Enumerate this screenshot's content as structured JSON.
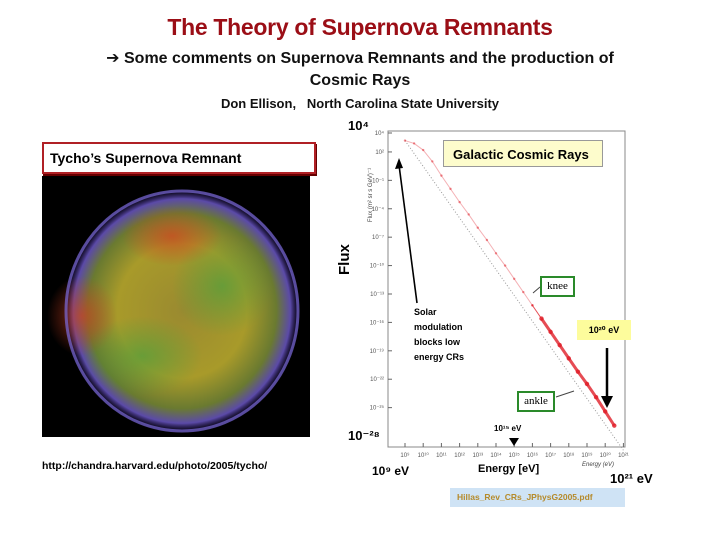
{
  "title": "The Theory of Supernova Remnants",
  "subtitle_line1": "➔ Some comments on Supernova Remnants and the production of",
  "subtitle_line2": "Cosmic Rays",
  "author": "Don Ellison,   North Carolina State University",
  "left_panel": {
    "label": "Tycho’s Supernova Remnant",
    "url": "http://chandra.harvard.edu/photo/2005/tycho/"
  },
  "source_file": "Hillas_Rev_CRs_JPhysG2005.pdf",
  "annotations": {
    "galactic": "Galactic Cosmic Rays",
    "knee": "knee",
    "ankle": "ankle",
    "e20": "10²⁰ eV",
    "e15": "10¹⁵ eV",
    "solar": [
      "Solar",
      "modulation",
      "blocks low",
      "energy CRs"
    ],
    "flux": "Flux",
    "energy": "Energy [eV]",
    "ymax": "10⁴",
    "ymin": "10⁻²⁸",
    "xmin": "10⁹ eV",
    "xmax": "10²¹ eV"
  },
  "chart_data": {
    "type": "scatter",
    "title": "",
    "xlabel": "Energy (eV)",
    "ylabel": "Flux (m² sr s GeV)⁻¹",
    "xscale": "log",
    "yscale": "log",
    "xlim": [
      1000000000.0,
      1e+21
    ],
    "ylim": [
      1e-28,
      10000.0
    ],
    "xticks": [
      "10⁹",
      "10¹⁰",
      "10¹¹",
      "10¹²",
      "10¹³",
      "10¹⁴",
      "10¹⁵",
      "10¹⁶",
      "10¹⁷",
      "10¹⁸",
      "10¹⁹",
      "10²⁰",
      "10²¹"
    ],
    "yticks": [
      "10⁴",
      "10²",
      "10⁻¹",
      "10⁻⁴",
      "10⁻⁷",
      "10⁻¹⁰",
      "10⁻¹³",
      "10⁻¹⁶",
      "10⁻¹⁹",
      "10⁻²²",
      "10⁻²⁵"
    ],
    "series": [
      {
        "log10_energy": [
          9,
          9.5,
          10,
          10.5,
          11,
          11.5,
          12,
          12.5,
          13,
          13.5,
          14,
          14.5,
          15,
          15.5,
          16,
          16.5,
          17,
          17.5,
          18,
          18.5,
          19,
          19.5,
          20,
          20.5
        ],
        "log10_flux": [
          3.2,
          2.9,
          2.2,
          1.0,
          -0.5,
          -1.9,
          -3.3,
          -4.6,
          -6.0,
          -7.3,
          -8.7,
          -10.0,
          -11.4,
          -12.8,
          -14.2,
          -15.6,
          -17.0,
          -18.4,
          -19.8,
          -21.2,
          -22.5,
          -23.9,
          -25.4,
          -26.9
        ],
        "color": "#e0202a"
      }
    ]
  }
}
